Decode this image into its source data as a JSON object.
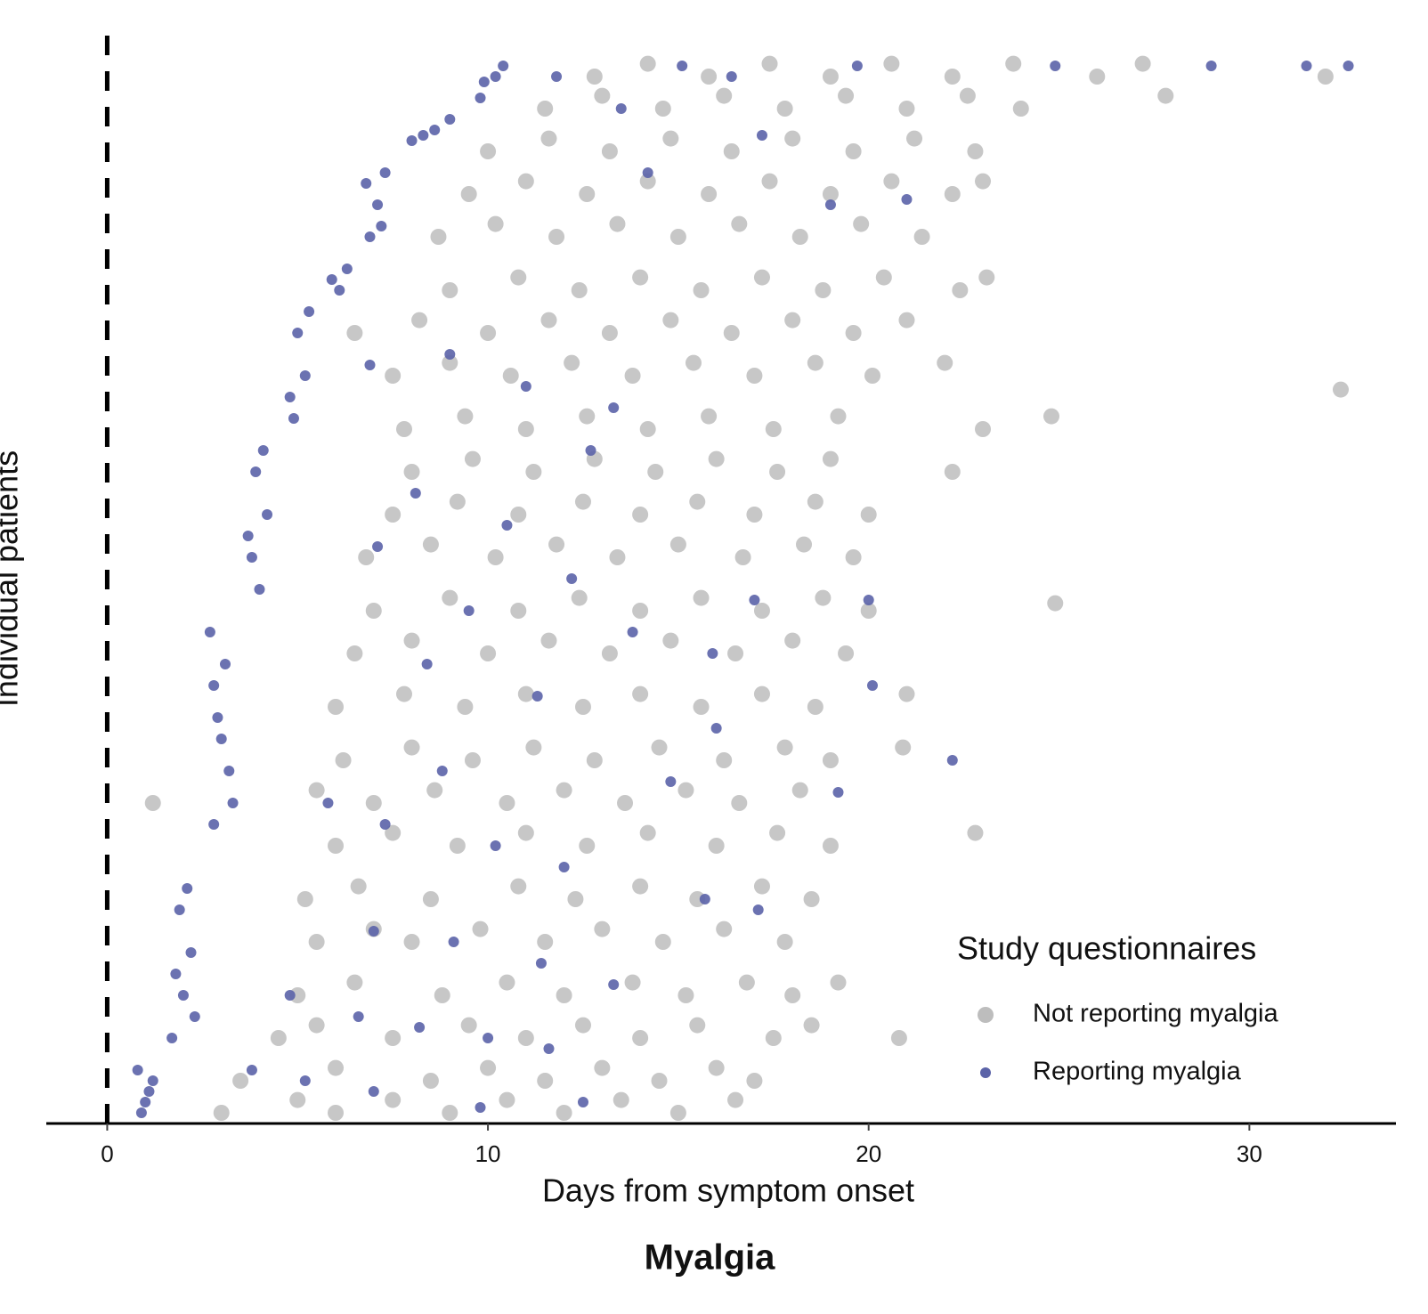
{
  "chart_data": {
    "type": "scatter",
    "title": "Myalgia",
    "x_label": "Days from symptom onset",
    "y_label": "Individual patients",
    "legend_title": "Study questionnaires",
    "legend_position": "bottom-right",
    "xlim": [
      -1.6,
      33.85
    ],
    "xticks": [
      0,
      10,
      20,
      30
    ],
    "ylim": [
      0,
      100
    ],
    "vline": 0,
    "series": [
      {
        "name": "Not reporting myalgia",
        "color": "#bdbdbd",
        "x": [
          3.0,
          5.0,
          6.0,
          7.5,
          9.0,
          10.5,
          12.0,
          13.5,
          15.0,
          16.5,
          3.5,
          6.0,
          8.5,
          10.0,
          11.5,
          13.0,
          14.5,
          16.0,
          17.0,
          4.5,
          5.5,
          7.5,
          9.5,
          11.0,
          12.5,
          14.0,
          15.5,
          17.5,
          18.5,
          20.8,
          5.0,
          6.5,
          8.8,
          10.5,
          12.0,
          13.8,
          15.2,
          16.8,
          18.0,
          19.2,
          5.5,
          7.0,
          8.0,
          9.8,
          11.5,
          13.0,
          14.6,
          16.2,
          17.8,
          5.2,
          6.6,
          8.5,
          10.8,
          12.3,
          14.0,
          15.5,
          17.2,
          18.5,
          6.0,
          7.5,
          9.2,
          11.0,
          12.6,
          14.2,
          16.0,
          17.6,
          19.0,
          22.8,
          1.2,
          5.5,
          7.0,
          8.6,
          10.5,
          12.0,
          13.6,
          15.2,
          16.6,
          18.2,
          6.2,
          8.0,
          9.6,
          11.2,
          12.8,
          14.5,
          16.2,
          17.8,
          19.0,
          20.9,
          6.0,
          7.8,
          9.4,
          11.0,
          12.5,
          14.0,
          15.6,
          17.2,
          18.6,
          21.0,
          6.5,
          8.0,
          10.0,
          11.6,
          13.2,
          14.8,
          16.5,
          18.0,
          19.4,
          7.0,
          9.0,
          10.8,
          12.4,
          14.0,
          15.6,
          17.2,
          18.8,
          20.0,
          24.9,
          6.8,
          8.5,
          10.2,
          11.8,
          13.4,
          15.0,
          16.7,
          18.3,
          19.6,
          7.5,
          9.2,
          10.8,
          12.5,
          14.0,
          15.5,
          17.0,
          18.6,
          20.0,
          8.0,
          9.6,
          11.2,
          12.8,
          14.4,
          16.0,
          17.6,
          19.0,
          22.2,
          7.8,
          9.4,
          11.0,
          12.6,
          14.2,
          15.8,
          17.5,
          19.2,
          23.0,
          24.8,
          32.4,
          7.5,
          9.0,
          10.6,
          12.2,
          13.8,
          15.4,
          17.0,
          18.6,
          20.1,
          22.0,
          6.5,
          8.2,
          10.0,
          11.6,
          13.2,
          14.8,
          16.4,
          18.0,
          19.6,
          21.0,
          9.0,
          10.8,
          12.4,
          14.0,
          15.6,
          17.2,
          18.8,
          20.4,
          22.4,
          23.1,
          8.7,
          10.2,
          11.8,
          13.4,
          15.0,
          16.6,
          18.2,
          19.8,
          21.4,
          9.5,
          11.0,
          12.6,
          14.2,
          15.8,
          17.4,
          19.0,
          20.6,
          22.2,
          23.0,
          10.0,
          11.6,
          13.2,
          14.8,
          16.4,
          18.0,
          19.6,
          21.2,
          22.8,
          11.5,
          13.0,
          14.6,
          16.2,
          17.8,
          19.4,
          21.0,
          22.6,
          24.0,
          27.8,
          12.8,
          14.2,
          15.8,
          17.4,
          19.0,
          20.6,
          22.2,
          23.8,
          26.0,
          27.2,
          32.0
        ],
        "values": [
          1,
          2.2,
          1,
          2.2,
          1,
          2.2,
          1,
          2.2,
          1,
          2.2,
          4,
          5.2,
          4,
          5.2,
          4,
          5.2,
          4,
          5.2,
          4,
          8,
          9.2,
          8,
          9.2,
          8,
          9.2,
          8,
          9.2,
          8,
          9.2,
          8,
          12,
          13.2,
          12,
          13.2,
          12,
          13.2,
          12,
          13.2,
          12,
          13.2,
          17,
          18.2,
          17,
          18.2,
          17,
          18.2,
          17,
          18.2,
          17,
          21,
          22.2,
          21,
          22.2,
          21,
          22.2,
          21,
          22.2,
          21,
          26,
          27.2,
          26,
          27.2,
          26,
          27.2,
          26,
          27.2,
          26,
          27.2,
          30,
          31.2,
          30,
          31.2,
          30,
          31.2,
          30,
          31.2,
          30,
          31.2,
          34,
          35.2,
          34,
          35.2,
          34,
          35.2,
          34,
          35.2,
          34,
          35.2,
          39,
          40.2,
          39,
          40.2,
          39,
          40.2,
          39,
          40.2,
          39,
          40.2,
          44,
          45.2,
          44,
          45.2,
          44,
          45.2,
          44,
          45.2,
          44,
          48,
          49.2,
          48,
          49.2,
          48,
          49.2,
          48,
          49.2,
          48,
          48.7,
          53,
          54.2,
          53,
          54.2,
          53,
          54.2,
          53,
          54.2,
          53,
          57,
          58.2,
          57,
          58.2,
          57,
          58.2,
          57,
          58.2,
          57,
          61,
          62.2,
          61,
          62.2,
          61,
          62.2,
          61,
          62.2,
          61,
          65,
          66.2,
          65,
          66.2,
          65,
          66.2,
          65,
          66.2,
          65,
          66.2,
          68.7,
          70,
          71.2,
          70,
          71.2,
          70,
          71.2,
          70,
          71.2,
          70,
          71.2,
          74,
          75.2,
          74,
          75.2,
          74,
          75.2,
          74,
          75.2,
          74,
          75.2,
          78,
          79.2,
          78,
          79.2,
          78,
          79.2,
          78,
          79.2,
          78,
          79.2,
          83,
          84.2,
          83,
          84.2,
          83,
          84.2,
          83,
          84.2,
          83,
          87,
          88.2,
          87,
          88.2,
          87,
          88.2,
          87,
          88.2,
          87,
          88.2,
          91,
          92.2,
          91,
          92.2,
          91,
          92.2,
          91,
          92.2,
          91,
          95,
          96.2,
          95,
          96.2,
          95,
          96.2,
          95,
          96.2,
          95,
          96.2,
          98,
          99.2,
          98,
          99.2,
          98,
          99.2,
          98,
          99.2,
          98,
          99.2,
          98
        ]
      },
      {
        "name": "Reporting myalgia",
        "color": "#5b63a8",
        "x": [
          1.0,
          0.8,
          1.2,
          0.9,
          1.1,
          1.7,
          2.0,
          2.2,
          1.9,
          2.1,
          1.8,
          2.3,
          2.8,
          3.2,
          2.9,
          3.1,
          2.7,
          3.3,
          3.0,
          2.8,
          4.0,
          3.8,
          4.2,
          3.9,
          4.1,
          3.7,
          4.9,
          5.2,
          5.0,
          5.3,
          4.8,
          6.1,
          6.3,
          5.9,
          6.9,
          7.1,
          7.3,
          6.8,
          7.2,
          8.0,
          8.6,
          9.0,
          8.3,
          9.8,
          10.2,
          10.4,
          9.9,
          24.9,
          29.0,
          31.5,
          32.6,
          19.7,
          15.1,
          11.8,
          16.4,
          13.5,
          17.2,
          14.2,
          19.0,
          21.0,
          6.9,
          9.0,
          11.0,
          13.3,
          12.7,
          8.1,
          10.5,
          7.1,
          12.2,
          9.5,
          13.8,
          15.9,
          17.0,
          20.0,
          20.1,
          8.4,
          11.3,
          16.0,
          8.8,
          14.8,
          19.2,
          22.2,
          5.8,
          7.3,
          10.2,
          12.0,
          15.7,
          17.1,
          7.0,
          9.1,
          11.4,
          13.3,
          4.8,
          6.6,
          8.2,
          10.0,
          11.6,
          3.8,
          5.2,
          7.0,
          9.8,
          12.5
        ],
        "values": [
          2,
          5,
          4,
          1,
          3,
          8,
          12,
          16,
          20,
          22,
          14,
          10,
          28,
          33,
          38,
          43,
          46,
          30,
          36,
          41,
          50,
          53,
          57,
          61,
          63,
          55,
          66,
          70,
          74,
          76,
          68,
          78,
          80,
          79,
          83,
          86,
          89,
          88,
          84,
          92,
          93,
          94,
          92.5,
          96,
          98,
          99,
          97.5,
          99,
          99,
          99,
          99,
          99,
          99,
          98,
          98,
          95,
          92.5,
          89,
          86,
          86.5,
          71,
          72,
          69,
          67,
          63,
          59,
          56,
          54,
          51,
          48,
          46,
          44,
          49,
          49,
          41,
          43,
          40,
          37,
          33,
          32,
          31,
          34,
          30,
          28,
          26,
          24,
          21,
          20,
          18,
          17,
          15,
          13,
          12,
          10,
          9,
          8,
          7,
          5,
          4,
          3,
          1.5,
          2
        ]
      }
    ]
  }
}
